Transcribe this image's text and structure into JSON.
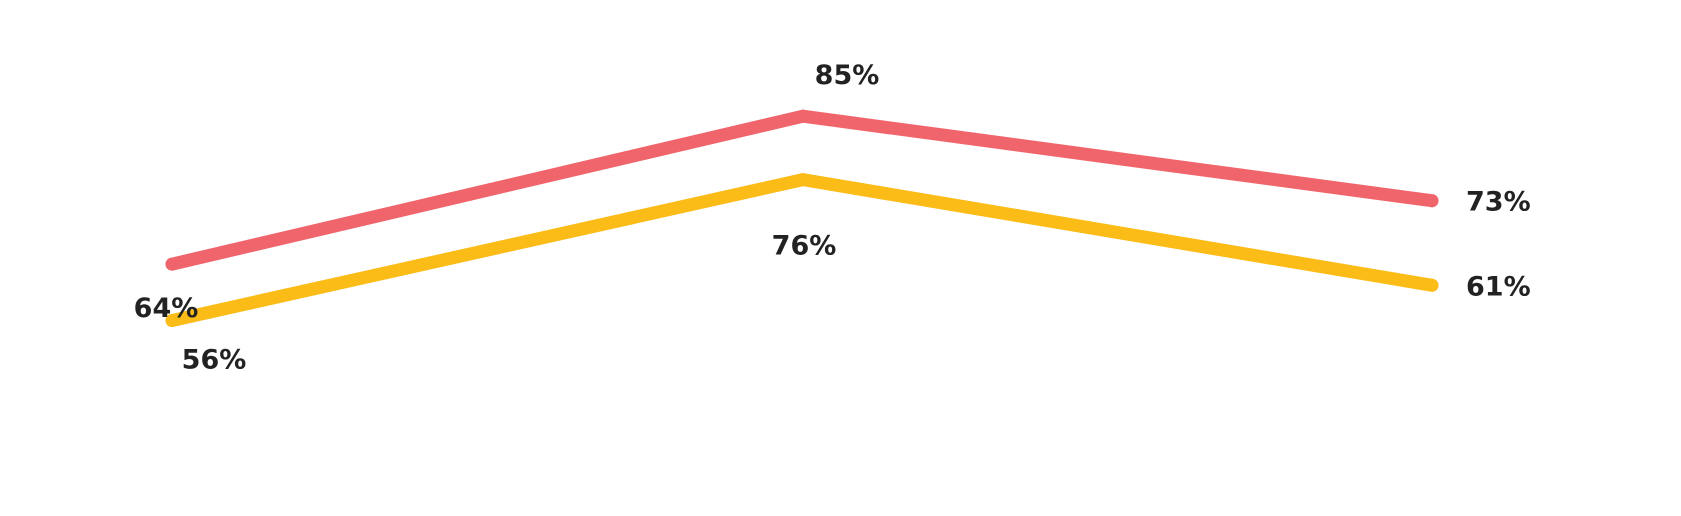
{
  "chart_data": {
    "type": "line",
    "categories": [
      "",
      "",
      ""
    ],
    "series": [
      {
        "values": [
          64,
          85,
          73
        ],
        "labels": [
          "64%",
          "85%",
          "73%"
        ],
        "color": "#f0656c"
      },
      {
        "values": [
          56,
          76,
          61
        ],
        "labels": [
          "56%",
          "76%",
          "61%"
        ],
        "color": "#fbbc18"
      }
    ],
    "ylim": [
      46,
      89
    ],
    "grid": false,
    "legend": "none",
    "title": "",
    "xlabel": "",
    "ylabel": ""
  }
}
